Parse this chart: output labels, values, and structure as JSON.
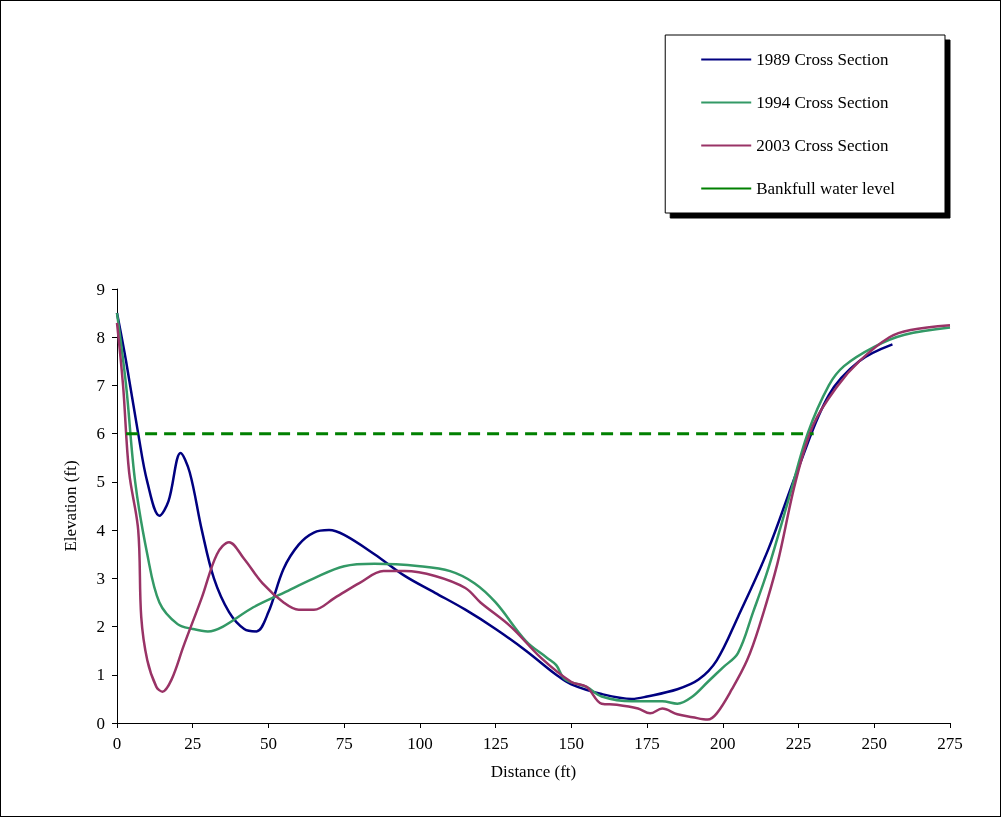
{
  "chart_data": {
    "type": "line",
    "xlabel": "Distance (ft)",
    "ylabel": "Elevation (ft)",
    "xlim": [
      0,
      275
    ],
    "xticks": [
      0,
      25,
      50,
      75,
      100,
      125,
      150,
      175,
      200,
      225,
      250,
      275
    ],
    "ylim": [
      0,
      9
    ],
    "yticks": [
      0,
      1,
      2,
      3,
      4,
      5,
      6,
      7,
      8,
      9
    ],
    "grid": false,
    "legend": "top right",
    "marker": "none",
    "series": [
      {
        "name": "1989 Cross Section",
        "color": "#000080",
        "line_style": "solid",
        "x": [
          0,
          3,
          7,
          10,
          14,
          17,
          21,
          24,
          28,
          32,
          37,
          42,
          46,
          50,
          55,
          60,
          65,
          70,
          75,
          85,
          95,
          105,
          115,
          125,
          135,
          145,
          150,
          160,
          170,
          175,
          185,
          192,
          198,
          205,
          215,
          225,
          235,
          245,
          256
        ],
        "values": [
          8.5,
          7.5,
          6,
          5,
          4.3,
          4.6,
          5.6,
          5.2,
          4,
          3,
          2.3,
          1.95,
          1.9,
          2.3,
          3.2,
          3.7,
          3.95,
          4,
          3.9,
          3.5,
          3.05,
          2.7,
          2.35,
          1.95,
          1.5,
          1,
          0.8,
          0.6,
          0.5,
          0.55,
          0.7,
          0.9,
          1.3,
          2.2,
          3.6,
          5.3,
          6.8,
          7.5,
          7.85
        ]
      },
      {
        "name": "1994 Cross Section",
        "color": "#339966",
        "line_style": "solid",
        "x": [
          0,
          3,
          6,
          10,
          14,
          20,
          25,
          30,
          35,
          45,
          55,
          65,
          75,
          85,
          100,
          110,
          118,
          125,
          135,
          142,
          145,
          148,
          155,
          160,
          170,
          180,
          185,
          190,
          195,
          200,
          205,
          210,
          215,
          222,
          228,
          235,
          240,
          250,
          260,
          275
        ],
        "values": [
          8.5,
          7,
          5,
          3.5,
          2.5,
          2.05,
          1.95,
          1.9,
          2,
          2.4,
          2.7,
          3,
          3.25,
          3.3,
          3.25,
          3.15,
          2.9,
          2.5,
          1.7,
          1.35,
          1.2,
          0.9,
          0.75,
          0.55,
          0.45,
          0.45,
          0.4,
          0.55,
          0.85,
          1.15,
          1.45,
          2.3,
          3.2,
          4.7,
          6,
          7,
          7.4,
          7.8,
          8.05,
          8.2
        ]
      },
      {
        "name": "2003 Cross Section",
        "color": "#993366",
        "line_style": "solid",
        "x": [
          0,
          2,
          4,
          7,
          8,
          10,
          13,
          15,
          18,
          22,
          28,
          33,
          37,
          42,
          48,
          55,
          60,
          65,
          72,
          80,
          88,
          95,
          105,
          115,
          120,
          130,
          140,
          150,
          155,
          160,
          165,
          172,
          176,
          180,
          185,
          190,
          195,
          198,
          203,
          208,
          212,
          218,
          224,
          230,
          238,
          245,
          255,
          262,
          275
        ],
        "values": [
          8.3,
          7,
          5.2,
          4,
          2.2,
          1.3,
          0.75,
          0.65,
          0.9,
          1.6,
          2.6,
          3.5,
          3.75,
          3.4,
          2.9,
          2.5,
          2.35,
          2.35,
          2.6,
          2.9,
          3.15,
          3.15,
          3.05,
          2.8,
          2.5,
          2,
          1.35,
          0.85,
          0.75,
          0.4,
          0.38,
          0.3,
          0.2,
          0.3,
          0.18,
          0.12,
          0.07,
          0.2,
          0.7,
          1.3,
          2,
          3.3,
          5,
          6.2,
          7,
          7.5,
          8,
          8.15,
          8.25
        ]
      },
      {
        "name": "Bankfull water level",
        "color": "#008000",
        "line_style": "dashed",
        "x": [
          3,
          230
        ],
        "values": [
          6,
          6
        ]
      }
    ]
  }
}
